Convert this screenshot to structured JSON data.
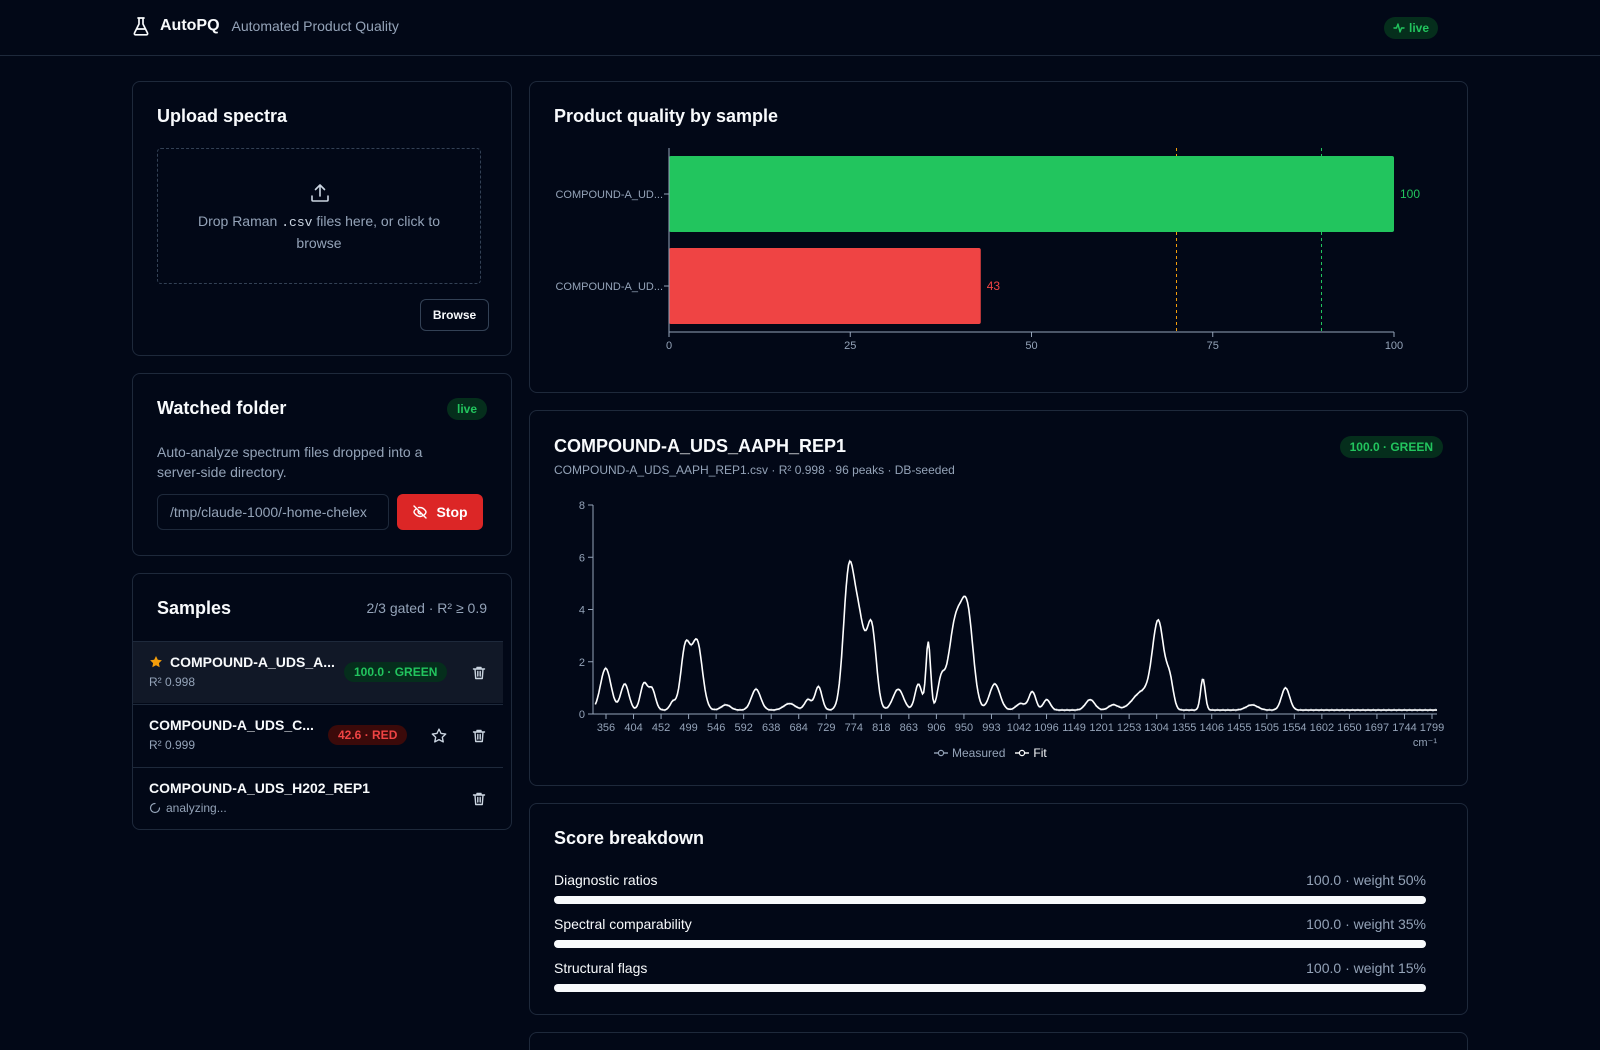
{
  "header": {
    "app_name": "AutoPQ",
    "subtitle": "Automated Product Quality",
    "live_label": "live"
  },
  "upload": {
    "title": "Upload spectra",
    "drop_text_before": "Drop Raman",
    "drop_ext": ".csv",
    "drop_text_after": "files here, or click to browse",
    "browse_label": "Browse"
  },
  "watch": {
    "title": "Watched folder",
    "badge": "live",
    "description": "Auto-analyze spectrum files dropped into a server-side directory.",
    "path": "/tmp/claude-1000/-home-chelex",
    "stop_label": "Stop"
  },
  "samples": {
    "title": "Samples",
    "summary": "2/3 gated · R² ≥ 0.9",
    "items": [
      {
        "name": "COMPOUND-A_UDS_A...",
        "sub": "R² 0.998",
        "score": "100.0 · GREEN",
        "status": "green",
        "starred": true
      },
      {
        "name": "COMPOUND-A_UDS_C...",
        "sub": "R² 0.999",
        "score": "42.6 · RED",
        "status": "red",
        "starred": false
      },
      {
        "name": "COMPOUND-A_UDS_H202_REP1",
        "sub": "analyzing...",
        "score": "",
        "status": "pending",
        "starred": false
      }
    ]
  },
  "quality_chart": {
    "title": "Product quality by sample"
  },
  "detail": {
    "title": "COMPOUND-A_UDS_AAPH_REP1",
    "meta": "COMPOUND-A_UDS_AAPH_REP1.csv · R² 0.998 · 96 peaks · DB-seeded",
    "badge": "100.0 · GREEN",
    "unit": "cm⁻¹",
    "legend_measured": "Measured",
    "legend_fit": "Fit"
  },
  "breakdown": {
    "title": "Score breakdown",
    "rows": [
      {
        "label": "Diagnostic ratios",
        "value": "100.0 · weight 50%",
        "fraction": 1.0
      },
      {
        "label": "Spectral comparability",
        "value": "100.0 · weight 35%",
        "fraction": 1.0
      },
      {
        "label": "Structural flags",
        "value": "100.0 · weight 15%",
        "fraction": 1.0
      }
    ]
  },
  "chart_data": [
    {
      "type": "bar",
      "orientation": "horizontal",
      "categories": [
        "COMPOUND-A_UD...",
        "COMPOUND-A_UD..."
      ],
      "values": [
        100,
        43
      ],
      "colors": [
        "#22c55e",
        "#ef4444"
      ],
      "xlim": [
        0,
        100
      ],
      "xticks": [
        0,
        25,
        50,
        75,
        100
      ],
      "reference_lines": [
        {
          "x": 70,
          "color": "#f59e0b"
        },
        {
          "x": 90,
          "color": "#22c55e"
        }
      ]
    },
    {
      "type": "line",
      "x_tick_labels": [
        "356",
        "404",
        "452",
        "499",
        "546",
        "592",
        "638",
        "684",
        "729",
        "774",
        "818",
        "863",
        "906",
        "950",
        "993",
        "1042",
        "1096",
        "1149",
        "1201",
        "1253",
        "1304",
        "1355",
        "1406",
        "1455",
        "1505",
        "1554",
        "1602",
        "1650",
        "1697",
        "1744",
        "1799"
      ],
      "ylim": [
        0,
        8
      ],
      "yticks": [
        0,
        2,
        4,
        6,
        8
      ],
      "xlim": [
        340,
        1800
      ],
      "xlabel": "cm⁻¹",
      "series": [
        {
          "name": "Measured",
          "color": "#94a3b8"
        },
        {
          "name": "Fit",
          "color": "#ffffff"
        }
      ],
      "peaks": [
        {
          "x": 362,
          "h": 1.6,
          "w": 9
        },
        {
          "x": 395,
          "h": 1.0,
          "w": 7
        },
        {
          "x": 428,
          "h": 1.0,
          "w": 6
        },
        {
          "x": 442,
          "h": 0.8,
          "w": 6
        },
        {
          "x": 478,
          "h": 0.3,
          "w": 5
        },
        {
          "x": 500,
          "h": 2.4,
          "w": 8
        },
        {
          "x": 520,
          "h": 2.6,
          "w": 9
        },
        {
          "x": 570,
          "h": 0.2,
          "w": 8
        },
        {
          "x": 622,
          "h": 0.8,
          "w": 8
        },
        {
          "x": 680,
          "h": 0.25,
          "w": 10
        },
        {
          "x": 712,
          "h": 0.4,
          "w": 6
        },
        {
          "x": 730,
          "h": 0.9,
          "w": 6
        },
        {
          "x": 782,
          "h": 4.9,
          "w": 9
        },
        {
          "x": 800,
          "h": 3.3,
          "w": 10
        },
        {
          "x": 822,
          "h": 3.1,
          "w": 8
        },
        {
          "x": 868,
          "h": 0.8,
          "w": 9
        },
        {
          "x": 903,
          "h": 1.0,
          "w": 6
        },
        {
          "x": 920,
          "h": 2.6,
          "w": 4
        },
        {
          "x": 942,
          "h": 1.0,
          "w": 6
        },
        {
          "x": 967,
          "h": 3.3,
          "w": 12
        },
        {
          "x": 988,
          "h": 3.4,
          "w": 10
        },
        {
          "x": 1035,
          "h": 1.0,
          "w": 9
        },
        {
          "x": 1080,
          "h": 0.25,
          "w": 8
        },
        {
          "x": 1100,
          "h": 0.7,
          "w": 6
        },
        {
          "x": 1125,
          "h": 0.4,
          "w": 6
        },
        {
          "x": 1200,
          "h": 0.4,
          "w": 8
        },
        {
          "x": 1240,
          "h": 0.2,
          "w": 8
        },
        {
          "x": 1290,
          "h": 0.7,
          "w": 16
        },
        {
          "x": 1318,
          "h": 3.3,
          "w": 10
        },
        {
          "x": 1338,
          "h": 1.0,
          "w": 6
        },
        {
          "x": 1395,
          "h": 1.2,
          "w": 4
        },
        {
          "x": 1480,
          "h": 0.2,
          "w": 10
        },
        {
          "x": 1538,
          "h": 0.85,
          "w": 7
        }
      ],
      "baseline": 0.15
    }
  ]
}
